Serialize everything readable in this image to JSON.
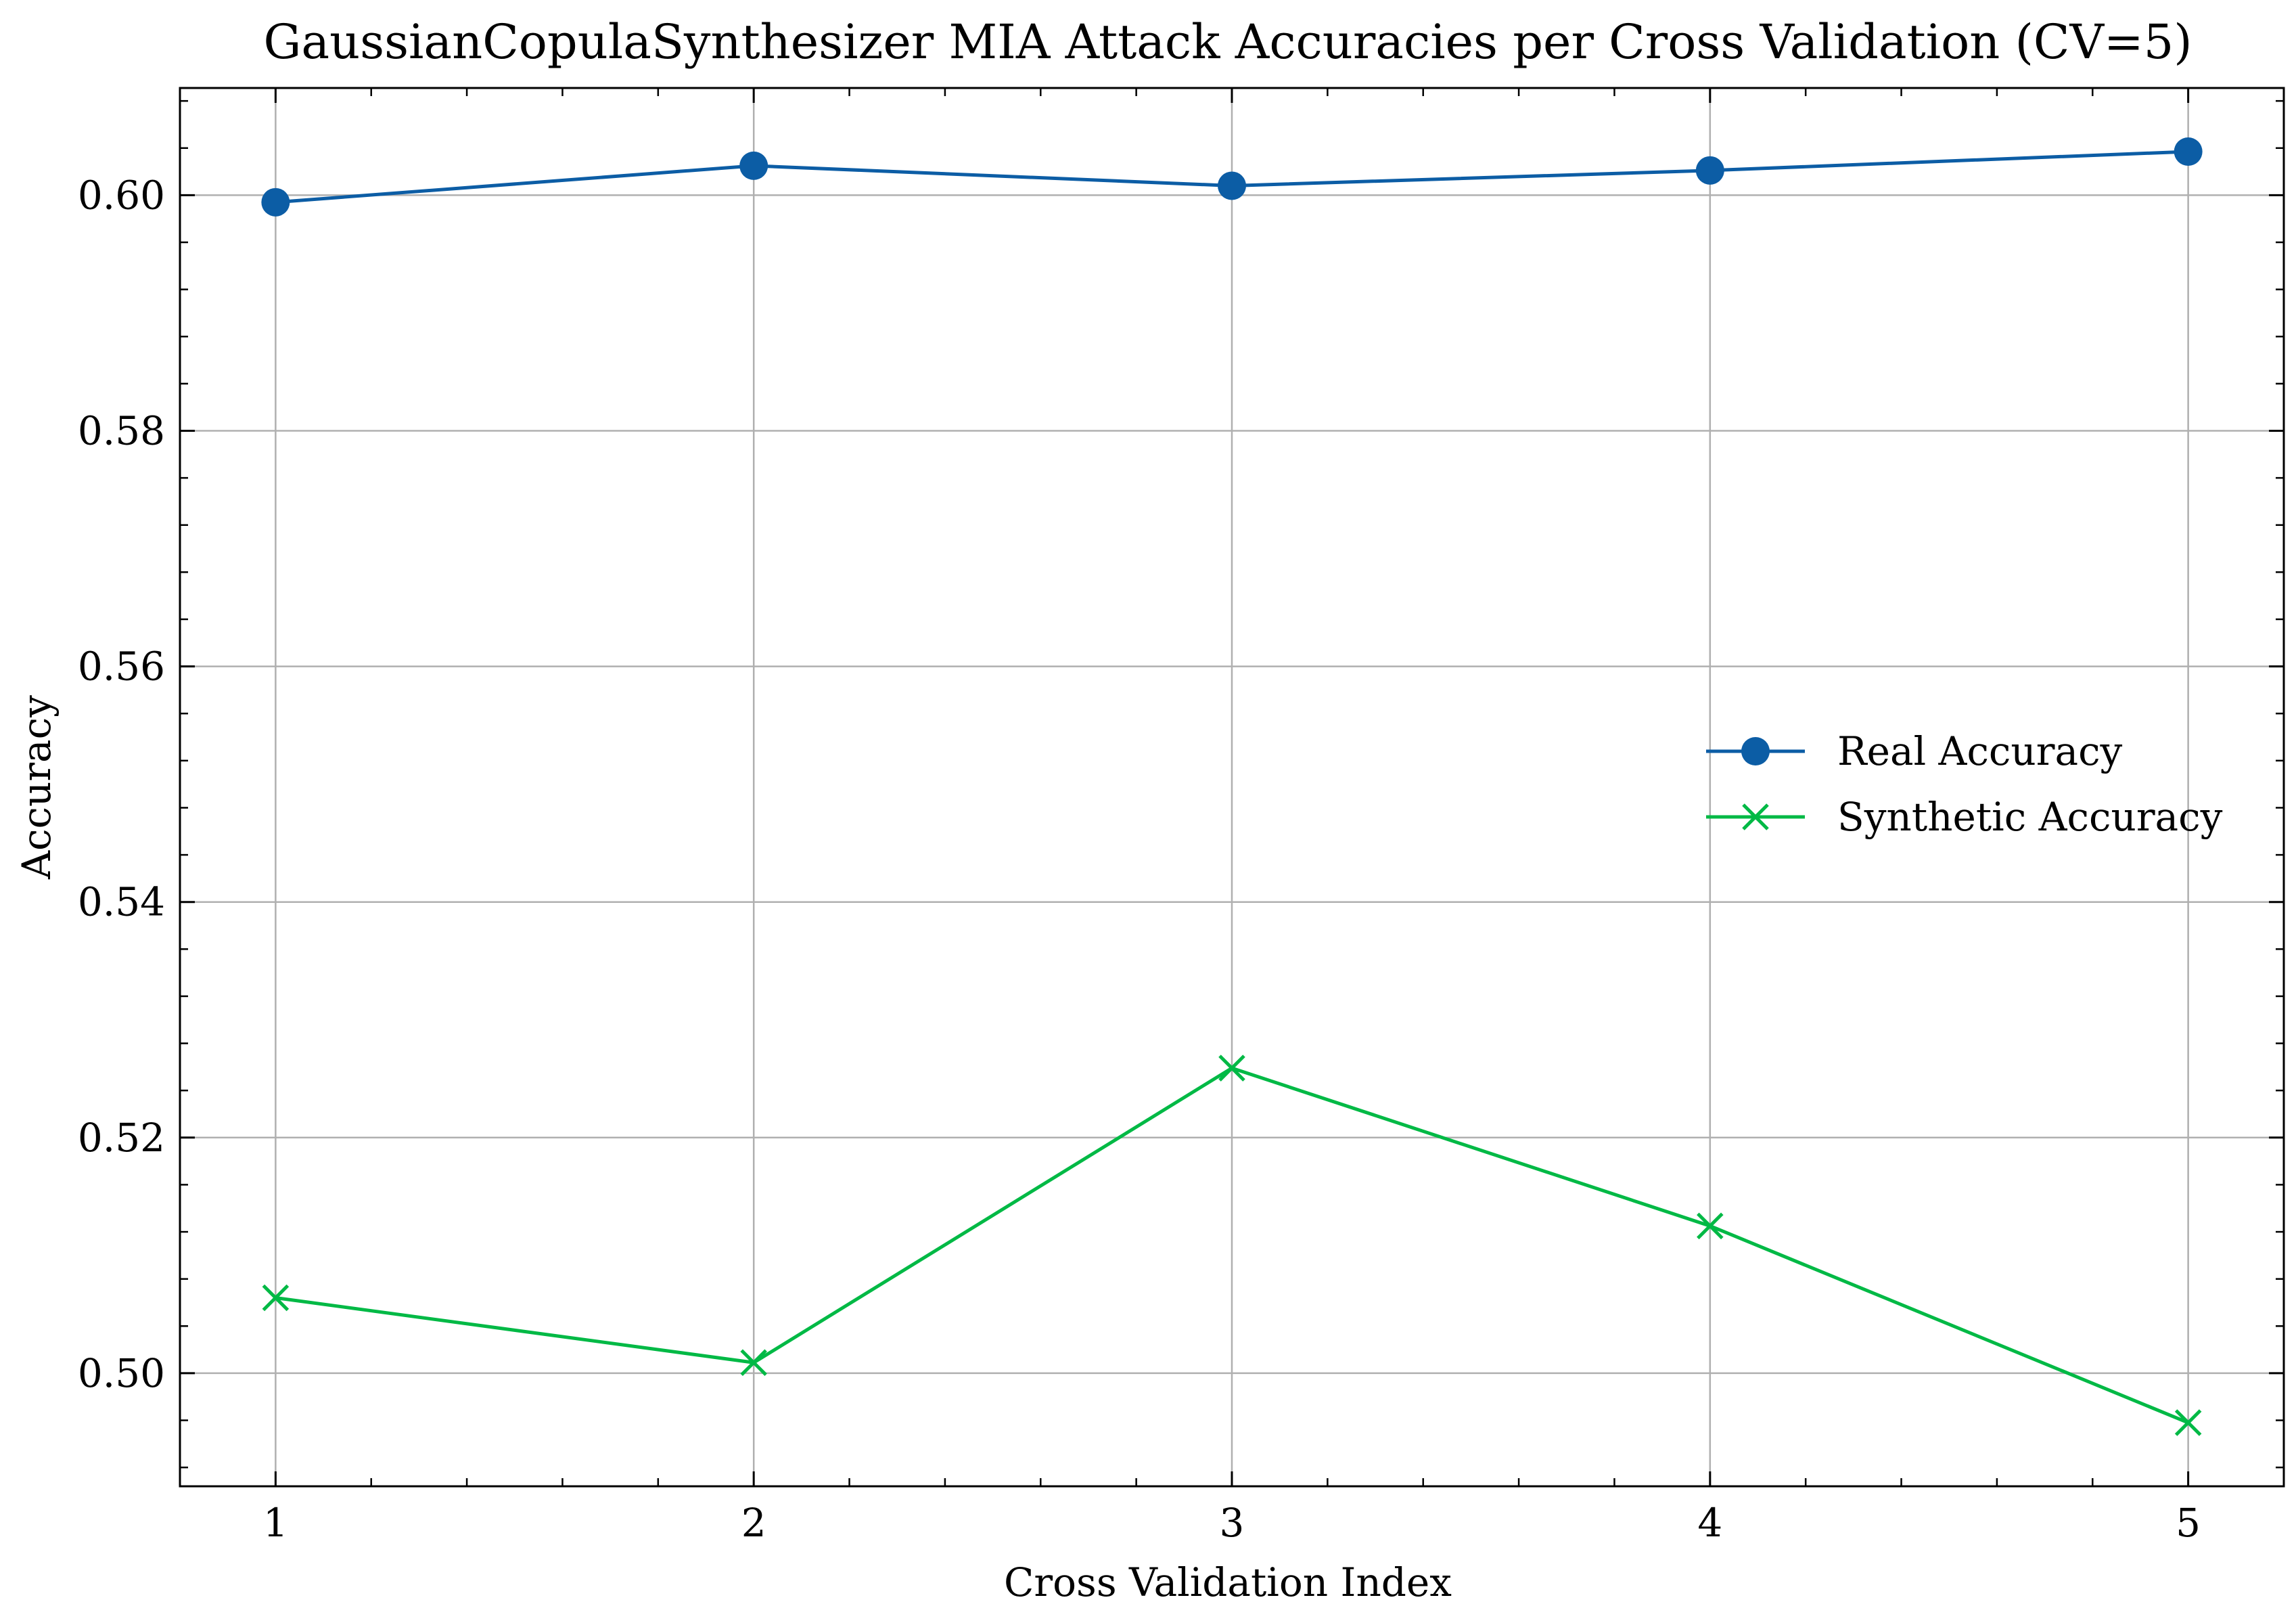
{
  "chart_data": {
    "type": "line",
    "title": "GaussianCopulaSynthesizer MIA Attack Accuracies per Cross Validation (CV=5)",
    "xlabel": "Cross Validation Index",
    "ylabel": "Accuracy",
    "x": [
      1,
      2,
      3,
      4,
      5
    ],
    "xlim": [
      0.8,
      5.2
    ],
    "ylim": [
      0.4904,
      0.6091
    ],
    "xticks": [
      1,
      2,
      3,
      4,
      5
    ],
    "xtick_labels": [
      "1",
      "2",
      "3",
      "4",
      "5"
    ],
    "yticks": [
      0.5,
      0.52,
      0.54,
      0.56,
      0.58,
      0.6
    ],
    "ytick_labels": [
      "0.50",
      "0.52",
      "0.54",
      "0.56",
      "0.58",
      "0.60"
    ],
    "grid": true,
    "legend_position": "center-right",
    "series": [
      {
        "name": "Real Accuracy",
        "marker": "circle",
        "color": "#0C5DA5",
        "values": [
          0.5994,
          0.6025,
          0.6008,
          0.6021,
          0.6037
        ]
      },
      {
        "name": "Synthetic Accuracy",
        "marker": "x",
        "color": "#00B945",
        "values": [
          0.5064,
          0.5009,
          0.5259,
          0.5125,
          0.4958
        ]
      }
    ]
  }
}
